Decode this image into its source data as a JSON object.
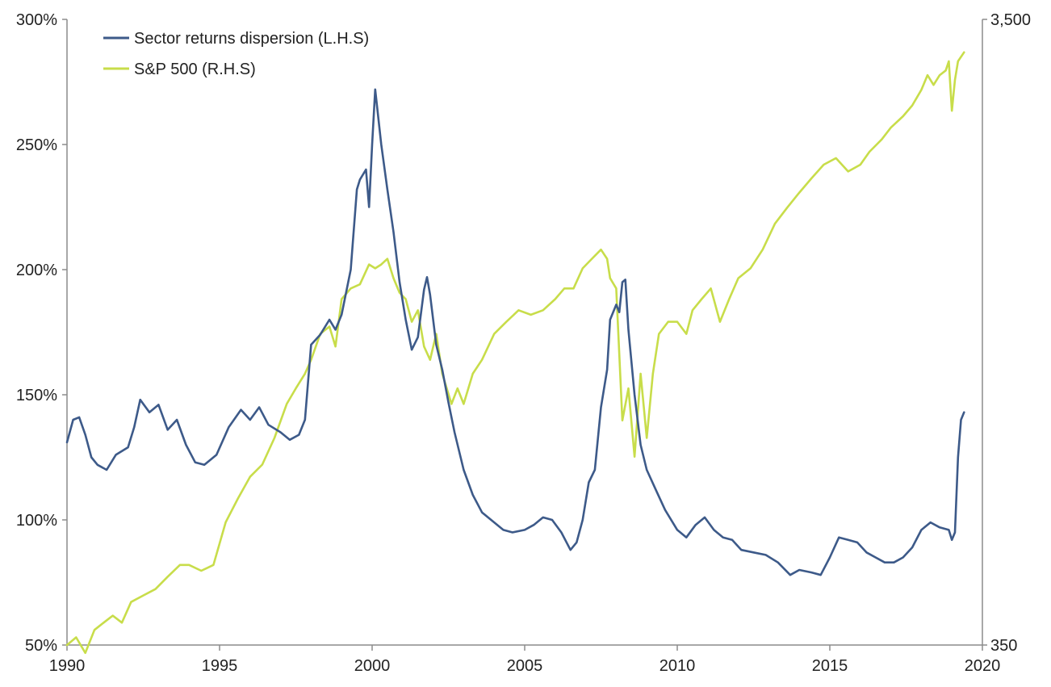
{
  "chart_data": {
    "type": "line",
    "title": "",
    "xlabel": "",
    "ylabel": "",
    "x_ticks": [
      "1990",
      "1995",
      "2000",
      "2005",
      "2010",
      "2015",
      "2020"
    ],
    "xlim": [
      1990,
      2020
    ],
    "y_left_ticks": [
      "50%",
      "100%",
      "150%",
      "200%",
      "250%",
      "300%"
    ],
    "y_left_range": [
      50,
      300
    ],
    "y_right_ticks": [
      "350",
      "3,500"
    ],
    "y_right_range": [
      350,
      3500
    ],
    "y_right_scale": "log",
    "grid": false,
    "legend_position": "top-left",
    "colors": {
      "dispersion": "#3d5a89",
      "sp500": "#c8dd4a"
    },
    "series": [
      {
        "name": "Sector returns dispersion (L.H.S)",
        "axis": "left",
        "color": "#3d5a89",
        "x": [
          1990.0,
          1990.2,
          1990.4,
          1990.6,
          1990.8,
          1991.0,
          1991.3,
          1991.6,
          1992.0,
          1992.2,
          1992.4,
          1992.7,
          1993.0,
          1993.3,
          1993.6,
          1993.9,
          1994.2,
          1994.5,
          1994.9,
          1995.3,
          1995.7,
          1996.0,
          1996.3,
          1996.6,
          1997.0,
          1997.3,
          1997.6,
          1997.8,
          1998.0,
          1998.3,
          1998.6,
          1998.8,
          1999.0,
          1999.3,
          1999.5,
          1999.6,
          1999.8,
          1999.9,
          2000.0,
          2000.1,
          2000.3,
          2000.5,
          2000.7,
          2000.9,
          2001.1,
          2001.3,
          2001.5,
          2001.7,
          2001.8,
          2001.9,
          2002.1,
          2002.3,
          2002.5,
          2002.7,
          2003.0,
          2003.3,
          2003.6,
          2004.0,
          2004.3,
          2004.6,
          2005.0,
          2005.3,
          2005.6,
          2005.9,
          2006.2,
          2006.5,
          2006.7,
          2006.9,
          2007.1,
          2007.3,
          2007.5,
          2007.7,
          2007.8,
          2008.0,
          2008.1,
          2008.2,
          2008.3,
          2008.4,
          2008.6,
          2008.8,
          2009.0,
          2009.3,
          2009.6,
          2010.0,
          2010.3,
          2010.6,
          2010.9,
          2011.2,
          2011.5,
          2011.8,
          2012.1,
          2012.5,
          2012.9,
          2013.3,
          2013.7,
          2014.0,
          2014.4,
          2014.7,
          2015.0,
          2015.3,
          2015.6,
          2015.9,
          2016.2,
          2016.5,
          2016.8,
          2017.1,
          2017.4,
          2017.7,
          2018.0,
          2018.3,
          2018.6,
          2018.9,
          2019.0,
          2019.1,
          2019.2,
          2019.3,
          2019.4
        ],
        "values": [
          131,
          140,
          141,
          134,
          125,
          122,
          120,
          126,
          129,
          137,
          148,
          143,
          146,
          136,
          140,
          130,
          123,
          122,
          126,
          137,
          144,
          140,
          145,
          138,
          135,
          132,
          134,
          140,
          170,
          174,
          180,
          176,
          182,
          200,
          232,
          236,
          240,
          225,
          250,
          272,
          250,
          232,
          215,
          195,
          180,
          168,
          173,
          192,
          197,
          190,
          170,
          160,
          147,
          135,
          120,
          110,
          103,
          99,
          96,
          95,
          96,
          98,
          101,
          100,
          95,
          88,
          91,
          100,
          115,
          120,
          145,
          160,
          180,
          186,
          183,
          195,
          196,
          176,
          150,
          130,
          120,
          112,
          104,
          96,
          93,
          98,
          101,
          96,
          93,
          92,
          88,
          87,
          86,
          83,
          78,
          80,
          79,
          78,
          85,
          93,
          92,
          91,
          87,
          85,
          83,
          83,
          85,
          89,
          96,
          99,
          97,
          96,
          92,
          95,
          125,
          140,
          143
        ]
      },
      {
        "name": "S&P 500 (R.H.S)",
        "axis": "right",
        "color": "#c8dd4a",
        "x": [
          1990.0,
          1990.3,
          1990.6,
          1990.9,
          1991.2,
          1991.5,
          1991.8,
          1992.1,
          1992.5,
          1992.9,
          1993.3,
          1993.7,
          1994.0,
          1994.4,
          1994.8,
          1995.2,
          1995.6,
          1996.0,
          1996.4,
          1996.8,
          1997.2,
          1997.5,
          1997.8,
          1998.0,
          1998.3,
          1998.6,
          1998.8,
          1999.0,
          1999.3,
          1999.6,
          1999.9,
          2000.1,
          2000.3,
          2000.5,
          2000.7,
          2000.9,
          2001.1,
          2001.3,
          2001.5,
          2001.7,
          2001.9,
          2002.1,
          2002.3,
          2002.6,
          2002.8,
          2003.0,
          2003.3,
          2003.6,
          2004.0,
          2004.4,
          2004.8,
          2005.2,
          2005.6,
          2006.0,
          2006.3,
          2006.6,
          2006.9,
          2007.2,
          2007.5,
          2007.7,
          2007.8,
          2008.0,
          2008.2,
          2008.4,
          2008.6,
          2008.8,
          2009.0,
          2009.2,
          2009.4,
          2009.7,
          2010.0,
          2010.3,
          2010.5,
          2010.8,
          2011.1,
          2011.4,
          2011.7,
          2012.0,
          2012.4,
          2012.8,
          2013.2,
          2013.6,
          2014.0,
          2014.4,
          2014.8,
          2015.2,
          2015.6,
          2016.0,
          2016.3,
          2016.7,
          2017.0,
          2017.4,
          2017.7,
          2018.0,
          2018.2,
          2018.4,
          2018.6,
          2018.8,
          2018.9,
          2019.0,
          2019.1,
          2019.2,
          2019.4
        ],
        "values": [
          350,
          360,
          340,
          370,
          380,
          390,
          380,
          410,
          420,
          430,
          450,
          470,
          470,
          460,
          470,
          550,
          600,
          650,
          680,
          750,
          850,
          900,
          950,
          1000,
          1100,
          1130,
          1050,
          1250,
          1300,
          1320,
          1420,
          1400,
          1420,
          1450,
          1350,
          1280,
          1250,
          1150,
          1200,
          1050,
          1000,
          1100,
          950,
          850,
          900,
          850,
          950,
          1000,
          1100,
          1150,
          1200,
          1180,
          1200,
          1250,
          1300,
          1300,
          1400,
          1450,
          1500,
          1450,
          1350,
          1300,
          800,
          900,
          700,
          950,
          750,
          950,
          1100,
          1150,
          1150,
          1100,
          1200,
          1250,
          1300,
          1150,
          1250,
          1350,
          1400,
          1500,
          1650,
          1750,
          1850,
          1950,
          2050,
          2100,
          2000,
          2050,
          2150,
          2250,
          2350,
          2450,
          2550,
          2700,
          2850,
          2750,
          2850,
          2900,
          3000,
          2500,
          2800,
          3000,
          3100
        ]
      }
    ]
  }
}
